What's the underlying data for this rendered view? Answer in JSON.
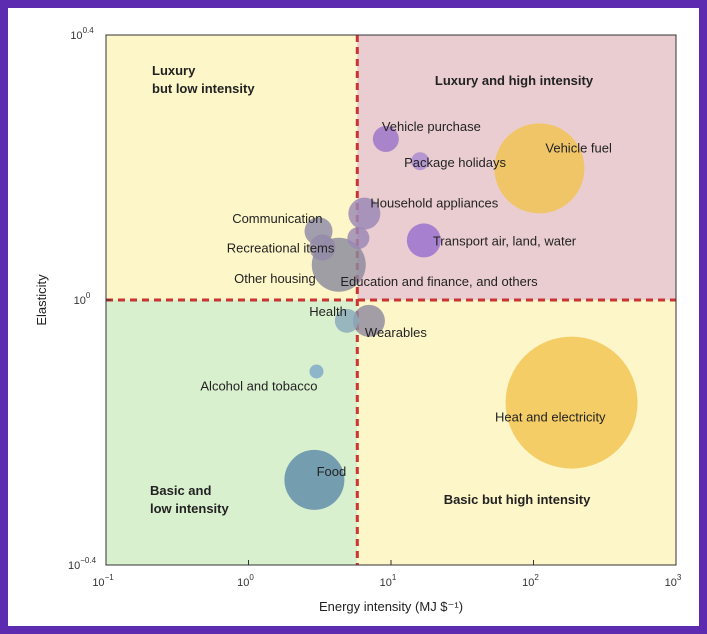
{
  "chart_data": {
    "type": "scatter",
    "xlabel": "Energy intensity (MJ $⁻¹)",
    "ylabel": "Elasticity",
    "x_scale": "log",
    "y_scale": "log",
    "xlim": [
      0.1,
      1000
    ],
    "ylim": [
      0.398,
      2.512
    ],
    "x_ticks": [
      {
        "value": 0.1,
        "base": "10",
        "exp": "−1"
      },
      {
        "value": 1,
        "base": "10",
        "exp": "0"
      },
      {
        "value": 10,
        "base": "10",
        "exp": "1"
      },
      {
        "value": 100,
        "base": "10",
        "exp": "2"
      },
      {
        "value": 1000,
        "base": "10",
        "exp": "3"
      }
    ],
    "y_ticks": [
      {
        "value": 0.398,
        "base": "10",
        "exp": "−0.4"
      },
      {
        "value": 1,
        "base": "10",
        "exp": "0"
      },
      {
        "value": 2.512,
        "base": "10",
        "exp": "0.4"
      }
    ],
    "thresholds": {
      "x": 5.8,
      "y": 1.0,
      "color": "#cc3333"
    },
    "quadrants": [
      {
        "name": "top-left",
        "lines": [
          "Luxury",
          "but low intensity"
        ],
        "color": "#fdf6c8"
      },
      {
        "name": "top-right",
        "lines": [
          "Luxury and high intensity"
        ],
        "color": "#eacdd0"
      },
      {
        "name": "bottom-left",
        "lines": [
          "Basic and",
          "low intensity"
        ],
        "color": "#d9f0cf"
      },
      {
        "name": "bottom-right",
        "lines": [
          "Basic but high intensity"
        ],
        "color": "#fdf6c8"
      }
    ],
    "points": [
      {
        "label": "Vehicle purchase",
        "x": 9.2,
        "y": 1.75,
        "size": 13,
        "color": "#9c74c8"
      },
      {
        "label": "Package holidays",
        "x": 16,
        "y": 1.62,
        "size": 9,
        "color": "#a98ad0"
      },
      {
        "label": "Vehicle fuel",
        "x": 110,
        "y": 1.58,
        "size": 45,
        "color": "#f2c350"
      },
      {
        "label": "Household appliances",
        "x": 6.5,
        "y": 1.35,
        "size": 16,
        "color": "#9a88b4"
      },
      {
        "label": "Transport air, land, water",
        "x": 17,
        "y": 1.23,
        "size": 17,
        "color": "#9a6fd0"
      },
      {
        "label": "Communication",
        "x": 3.1,
        "y": 1.27,
        "size": 14,
        "color": "#8f8aa8"
      },
      {
        "label": "Recreational items",
        "x": 3.3,
        "y": 1.2,
        "size": 13,
        "color": "#9289a8"
      },
      {
        "label": "Other housing",
        "x": 4.3,
        "y": 1.13,
        "size": 27,
        "color": "#8b8a9e"
      },
      {
        "label": "Education and finance, and others",
        "x": 5.9,
        "y": 1.24,
        "size": 11,
        "color": "#9a88b4"
      },
      {
        "label": "Health",
        "x": 4.9,
        "y": 0.93,
        "size": 12,
        "color": "#8aa8b8"
      },
      {
        "label": "Wearables",
        "x": 7.0,
        "y": 0.93,
        "size": 16,
        "color": "#8f8a9e"
      },
      {
        "label": "Alcohol and tobacco",
        "x": 3.0,
        "y": 0.78,
        "size": 7,
        "color": "#7ea7c8"
      },
      {
        "label": "Heat and electricity",
        "x": 185,
        "y": 0.7,
        "size": 66,
        "color": "#f2c350"
      },
      {
        "label": "Food",
        "x": 2.9,
        "y": 0.535,
        "size": 30,
        "color": "#5f8aa8"
      }
    ]
  }
}
